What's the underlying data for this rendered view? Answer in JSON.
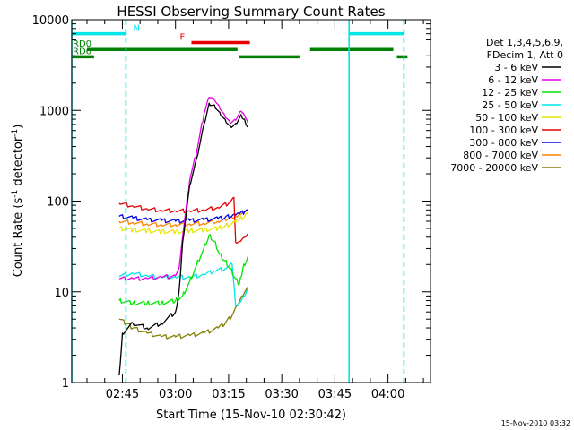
{
  "chart_data": {
    "type": "line",
    "title": "HESSI Observing Summary Count Rates",
    "xlabel": "Start Time (15-Nov-10 02:30:42)",
    "ylabel_main": "Count Rate (s",
    "ylabel_exp1": "-1",
    "ylabel_mid": " detector",
    "ylabel_exp2": "-1",
    "ylabel_end": ")",
    "y_scale": "log",
    "ylim": [
      1,
      10000
    ],
    "xlim": [
      "02:30:42",
      "04:12:00"
    ],
    "x_ticks": [
      "02:45",
      "03:00",
      "03:15",
      "03:30",
      "03:45",
      "04:00"
    ],
    "y_ticks": [
      "1",
      "10",
      "100",
      "1000",
      "10000"
    ],
    "timestamp": "15-Nov-2010 03:32",
    "legend_header": [
      "Det 1,3,4,5,6,9,",
      "FDecim 1, Att 0"
    ],
    "legend_position": "right",
    "series": [
      {
        "name": "3 - 6 keV",
        "color": "#000000",
        "points": [
          [
            "02:44:06",
            1.2
          ],
          [
            "02:45:00",
            3.5
          ],
          [
            "02:48:00",
            4.5
          ],
          [
            "02:52:00",
            4
          ],
          [
            "02:56:00",
            4.5
          ],
          [
            "03:00:00",
            6
          ],
          [
            "03:01:00",
            10
          ],
          [
            "03:02:00",
            35
          ],
          [
            "03:04:00",
            150
          ],
          [
            "03:06:00",
            300
          ],
          [
            "03:08:00",
            700
          ],
          [
            "03:09:30",
            1200
          ],
          [
            "03:11:00",
            1150
          ],
          [
            "03:12:30",
            950
          ],
          [
            "03:14:00",
            800
          ],
          [
            "03:15:30",
            670
          ],
          [
            "03:17:00",
            720
          ],
          [
            "03:18:30",
            900
          ],
          [
            "03:19:30",
            800
          ],
          [
            "03:20:30",
            650
          ]
        ]
      },
      {
        "name": "6 - 12 keV",
        "color": "#e600e6",
        "points": [
          [
            "02:44:06",
            14
          ],
          [
            "02:48:00",
            14
          ],
          [
            "02:52:00",
            14
          ],
          [
            "02:56:00",
            14.5
          ],
          [
            "03:00:00",
            15
          ],
          [
            "03:01:00",
            18
          ],
          [
            "03:02:00",
            40
          ],
          [
            "03:04:00",
            170
          ],
          [
            "03:06:00",
            350
          ],
          [
            "03:08:00",
            900
          ],
          [
            "03:09:30",
            1400
          ],
          [
            "03:11:00",
            1300
          ],
          [
            "03:12:30",
            1050
          ],
          [
            "03:14:00",
            850
          ],
          [
            "03:15:30",
            720
          ],
          [
            "03:17:00",
            780
          ],
          [
            "03:18:30",
            980
          ],
          [
            "03:19:30",
            880
          ],
          [
            "03:20:30",
            720
          ]
        ]
      },
      {
        "name": "12 - 25 keV",
        "color": "#00e600",
        "points": [
          [
            "02:44:06",
            8
          ],
          [
            "02:48:00",
            7.5
          ],
          [
            "02:52:00",
            7.5
          ],
          [
            "02:56:00",
            7.5
          ],
          [
            "03:00:00",
            8
          ],
          [
            "03:02:00",
            9
          ],
          [
            "03:04:00",
            13
          ],
          [
            "03:06:00",
            20
          ],
          [
            "03:08:00",
            30
          ],
          [
            "03:09:30",
            42
          ],
          [
            "03:11:00",
            36
          ],
          [
            "03:12:30",
            26
          ],
          [
            "03:14:00",
            22
          ],
          [
            "03:15:30",
            18
          ],
          [
            "03:17:00",
            14
          ],
          [
            "03:18:00",
            12
          ],
          [
            "03:19:00",
            18
          ],
          [
            "03:20:30",
            25
          ]
        ]
      },
      {
        "name": "25 - 50 keV",
        "color": "#00e6e6",
        "points": [
          [
            "02:44:06",
            15
          ],
          [
            "02:48:00",
            16
          ],
          [
            "02:52:00",
            15
          ],
          [
            "02:56:00",
            14.5
          ],
          [
            "03:00:00",
            14.5
          ],
          [
            "03:04:00",
            14.5
          ],
          [
            "03:08:00",
            15.5
          ],
          [
            "03:11:00",
            17
          ],
          [
            "03:14:00",
            18
          ],
          [
            "03:16:00",
            20
          ],
          [
            "03:17:00",
            7
          ],
          [
            "03:18:00",
            7.5
          ],
          [
            "03:19:30",
            9
          ],
          [
            "03:20:30",
            11
          ]
        ]
      },
      {
        "name": "50 - 100 keV",
        "color": "#e6e600",
        "points": [
          [
            "02:44:06",
            50
          ],
          [
            "02:48:00",
            48
          ],
          [
            "02:52:00",
            47
          ],
          [
            "02:56:00",
            46
          ],
          [
            "03:00:00",
            46
          ],
          [
            "03:04:00",
            47
          ],
          [
            "03:08:00",
            48
          ],
          [
            "03:12:00",
            50
          ],
          [
            "03:14:00",
            53
          ],
          [
            "03:16:00",
            57
          ],
          [
            "03:17:00",
            58
          ],
          [
            "03:18:00",
            62
          ],
          [
            "03:19:30",
            68
          ],
          [
            "03:20:30",
            72
          ]
        ]
      },
      {
        "name": "100 - 300 keV",
        "color": "#e60000",
        "points": [
          [
            "02:44:06",
            95
          ],
          [
            "02:48:00",
            88
          ],
          [
            "02:52:00",
            82
          ],
          [
            "02:56:00",
            79
          ],
          [
            "03:00:00",
            78
          ],
          [
            "03:04:00",
            78
          ],
          [
            "03:08:00",
            80
          ],
          [
            "03:12:00",
            85
          ],
          [
            "03:15:00",
            95
          ],
          [
            "03:16:30",
            110
          ],
          [
            "03:17:00",
            35
          ],
          [
            "03:18:00",
            36
          ],
          [
            "03:19:30",
            40
          ],
          [
            "03:20:30",
            44
          ]
        ]
      },
      {
        "name": "300 - 800 keV",
        "color": "#0000e6",
        "points": [
          [
            "02:44:06",
            68
          ],
          [
            "02:48:00",
            65
          ],
          [
            "02:52:00",
            62
          ],
          [
            "02:56:00",
            61
          ],
          [
            "03:00:00",
            60
          ],
          [
            "03:04:00",
            61
          ],
          [
            "03:08:00",
            62
          ],
          [
            "03:12:00",
            64
          ],
          [
            "03:14:00",
            66
          ],
          [
            "03:16:00",
            69
          ],
          [
            "03:17:00",
            70
          ],
          [
            "03:18:00",
            72
          ],
          [
            "03:19:30",
            76
          ],
          [
            "03:20:30",
            78
          ]
        ]
      },
      {
        "name": "800 - 7000 keV",
        "color": "#ff8000",
        "points": [
          [
            "02:44:06",
            60
          ],
          [
            "02:48:00",
            58
          ],
          [
            "02:52:00",
            56
          ],
          [
            "02:56:00",
            55
          ],
          [
            "03:00:00",
            55
          ],
          [
            "03:04:00",
            56
          ],
          [
            "03:08:00",
            57
          ],
          [
            "03:12:00",
            60
          ],
          [
            "03:14:00",
            63
          ],
          [
            "03:16:00",
            66
          ],
          [
            "03:17:00",
            68
          ],
          [
            "03:18:00",
            72
          ],
          [
            "03:19:30",
            78
          ],
          [
            "03:20:30",
            82
          ]
        ]
      },
      {
        "name": "7000 - 20000 keV",
        "color": "#808000",
        "points": [
          [
            "02:44:06",
            5
          ],
          [
            "02:46:00",
            4.5
          ],
          [
            "02:48:00",
            4
          ],
          [
            "02:52:00",
            3.5
          ],
          [
            "02:56:00",
            3.2
          ],
          [
            "03:00:00",
            3.2
          ],
          [
            "03:04:00",
            3.3
          ],
          [
            "03:08:00",
            3.5
          ],
          [
            "03:12:00",
            4
          ],
          [
            "03:14:00",
            4.5
          ],
          [
            "03:16:00",
            5.5
          ],
          [
            "03:17:30",
            7
          ],
          [
            "03:19:00",
            9
          ],
          [
            "03:20:30",
            11
          ]
        ]
      }
    ],
    "flag_bars": [
      {
        "label": "",
        "color": "#00e6e6",
        "level": 7000,
        "segments": [
          [
            "02:30:42",
            "02:46:00"
          ],
          [
            "03:49:00",
            "04:04:30"
          ]
        ]
      },
      {
        "label": "N",
        "color": "#00e6e6",
        "level": 7000,
        "segments": []
      },
      {
        "label": "F",
        "color": "#e60000",
        "level": 5600,
        "segments": [
          [
            "03:04:30",
            "03:21:00"
          ]
        ]
      },
      {
        "label": "RD0",
        "color": "#008000",
        "level": 4700,
        "segments": [
          [
            "02:35:00",
            "03:17:30"
          ],
          [
            "03:38:00",
            "04:01:30"
          ]
        ]
      },
      {
        "label": "RD6",
        "color": "#008000",
        "level": 3900,
        "segments": [
          [
            "02:30:42",
            "02:37:00"
          ],
          [
            "03:18:00",
            "03:35:00"
          ],
          [
            "04:02:30",
            "04:05:30"
          ]
        ]
      }
    ],
    "vertical_lines": [
      {
        "time": "02:30:42",
        "style": "solid",
        "color": "#00e6e6"
      },
      {
        "time": "02:46:00",
        "style": "dashed",
        "color": "#00e6e6"
      },
      {
        "time": "03:49:00",
        "style": "solid",
        "color": "#00e6e6"
      },
      {
        "time": "04:04:30",
        "style": "dashed",
        "color": "#00e6e6"
      }
    ]
  }
}
